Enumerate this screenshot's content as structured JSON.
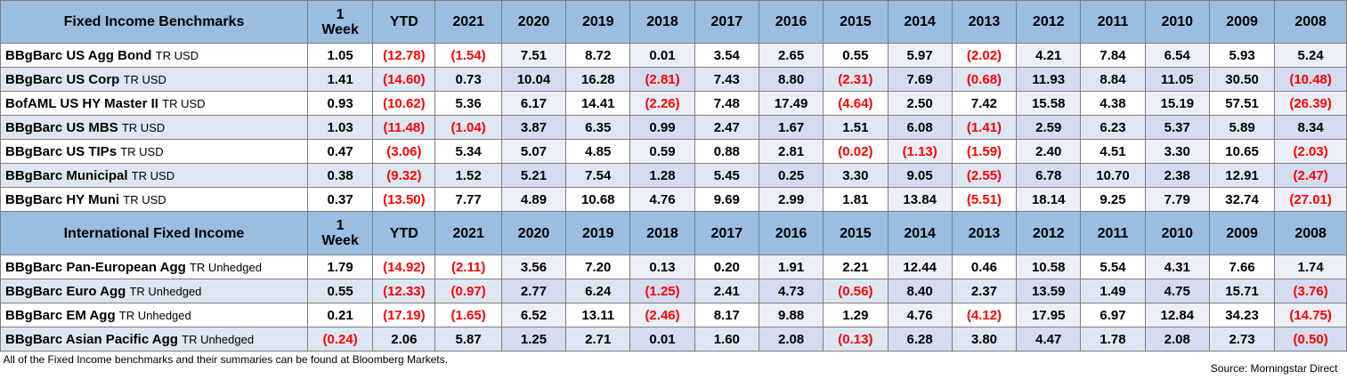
{
  "columns": [
    "1 Week",
    "YTD",
    "2021",
    "2020",
    "2019",
    "2018",
    "2017",
    "2016",
    "2015",
    "2014",
    "2013",
    "2012",
    "2011",
    "2010",
    "2009",
    "2008"
  ],
  "colors": {
    "header_bg": "#9bbde0",
    "row_alt_bg": "#dde7f3",
    "negative": "#ff0000",
    "border": "#7f7f7f"
  },
  "sections": [
    {
      "title": "Fixed Income Benchmarks",
      "rows": [
        {
          "name": "BBgBarc US Agg Bond",
          "suffix": "TR USD",
          "values": [
            "1.05",
            "(12.78)",
            "(1.54)",
            "7.51",
            "8.72",
            "0.01",
            "3.54",
            "2.65",
            "0.55",
            "5.97",
            "(2.02)",
            "4.21",
            "7.84",
            "6.54",
            "5.93",
            "5.24"
          ]
        },
        {
          "name": "BBgBarc US Corp",
          "suffix": "TR USD",
          "values": [
            "1.41",
            "(14.60)",
            "0.73",
            "10.04",
            "16.28",
            "(2.81)",
            "7.43",
            "8.80",
            "(2.31)",
            "7.69",
            "(0.68)",
            "11.93",
            "8.84",
            "11.05",
            "30.50",
            "(10.48)"
          ]
        },
        {
          "name": "BofAML US HY Master II",
          "suffix": "TR USD",
          "values": [
            "0.93",
            "(10.62)",
            "5.36",
            "6.17",
            "14.41",
            "(2.26)",
            "7.48",
            "17.49",
            "(4.64)",
            "2.50",
            "7.42",
            "15.58",
            "4.38",
            "15.19",
            "57.51",
            "(26.39)"
          ]
        },
        {
          "name": "BBgBarc US MBS",
          "suffix": "TR USD",
          "values": [
            "1.03",
            "(11.48)",
            "(1.04)",
            "3.87",
            "6.35",
            "0.99",
            "2.47",
            "1.67",
            "1.51",
            "6.08",
            "(1.41)",
            "2.59",
            "6.23",
            "5.37",
            "5.89",
            "8.34"
          ]
        },
        {
          "name": "BBgBarc US TIPs",
          "suffix": "TR USD",
          "values": [
            "0.47",
            "(3.06)",
            "5.34",
            "5.07",
            "4.85",
            "0.59",
            "0.88",
            "2.81",
            "(0.02)",
            "(1.13)",
            "(1.59)",
            "2.40",
            "4.51",
            "3.30",
            "10.65",
            "(2.03)"
          ]
        },
        {
          "name": "BBgBarc Municipal",
          "suffix": "TR USD",
          "values": [
            "0.38",
            "(9.32)",
            "1.52",
            "5.21",
            "7.54",
            "1.28",
            "5.45",
            "0.25",
            "3.30",
            "9.05",
            "(2.55)",
            "6.78",
            "10.70",
            "2.38",
            "12.91",
            "(2.47)"
          ]
        },
        {
          "name": "BBgBarc HY Muni",
          "suffix": "TR USD",
          "values": [
            "0.37",
            "(13.50)",
            "7.77",
            "4.89",
            "10.68",
            "4.76",
            "9.69",
            "2.99",
            "1.81",
            "13.84",
            "(5.51)",
            "18.14",
            "9.25",
            "7.79",
            "32.74",
            "(27.01)"
          ]
        }
      ]
    },
    {
      "title": "International Fixed Income",
      "rows": [
        {
          "name": "BBgBarc Pan-European Agg",
          "suffix": "TR Unhedged",
          "values": [
            "1.79",
            "(14.92)",
            "(2.11)",
            "3.56",
            "7.20",
            "0.13",
            "0.20",
            "1.91",
            "2.21",
            "12.44",
            "0.46",
            "10.58",
            "5.54",
            "4.31",
            "7.66",
            "1.74"
          ]
        },
        {
          "name": "BBgBarc Euro Agg",
          "suffix": "TR Unhedged",
          "values": [
            "0.55",
            "(12.33)",
            "(0.97)",
            "2.77",
            "6.24",
            "(1.25)",
            "2.41",
            "4.73",
            "(0.56)",
            "8.40",
            "2.37",
            "13.59",
            "1.49",
            "4.75",
            "15.71",
            "(3.76)"
          ]
        },
        {
          "name": "BBgBarc EM Agg",
          "suffix": "TR Unhedged",
          "values": [
            "0.21",
            "(17.19)",
            "(1.65)",
            "6.52",
            "13.11",
            "(2.46)",
            "8.17",
            "9.88",
            "1.29",
            "4.76",
            "(4.12)",
            "17.95",
            "6.97",
            "12.84",
            "34.23",
            "(14.75)"
          ]
        },
        {
          "name": "BBgBarc Asian Pacific Agg",
          "suffix": "TR Unhedged",
          "values": [
            "(0.24)",
            "2.06",
            "5.87",
            "1.25",
            "2.71",
            "0.01",
            "1.60",
            "2.08",
            "(0.13)",
            "6.28",
            "3.80",
            "4.47",
            "1.78",
            "2.08",
            "2.73",
            "(0.50)"
          ]
        }
      ]
    }
  ],
  "footer": {
    "note": "All of the Fixed Income benchmarks and their summaries can be found at Bloomberg Markets.",
    "source": "Source: Morningstar Direct"
  }
}
